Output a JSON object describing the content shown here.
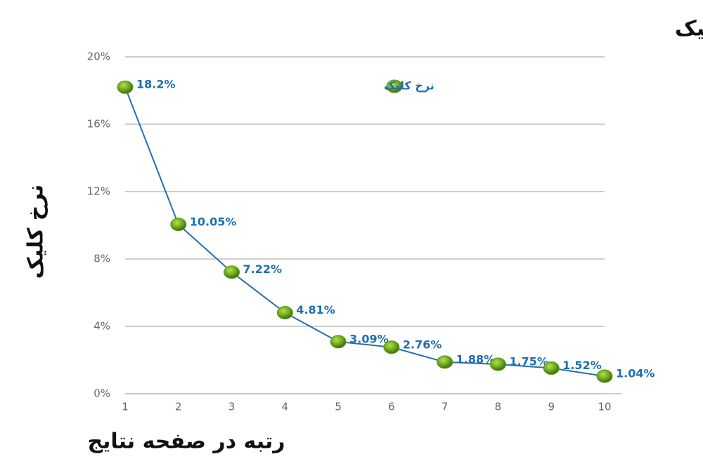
{
  "chart_data": {
    "type": "line",
    "title": "نمودار نرخ کلیک",
    "x_label": "رتبه در صفحه نتایج",
    "y_label": "نرخ کلیک",
    "x": [
      1,
      2,
      3,
      4,
      5,
      6,
      7,
      8,
      9,
      10
    ],
    "xlim": [
      1,
      10
    ],
    "xticks": [
      1,
      2,
      3,
      4,
      5,
      6,
      7,
      8,
      9,
      10
    ],
    "ylim": [
      0,
      20
    ],
    "yticks": [
      {
        "value": 0,
        "label": "0%"
      },
      {
        "value": 4,
        "label": "4%"
      },
      {
        "value": 8,
        "label": "8%"
      },
      {
        "value": 12,
        "label": "12%"
      },
      {
        "value": 16,
        "label": "16%"
      },
      {
        "value": 20,
        "label": "20%"
      }
    ],
    "grid": true,
    "series": [
      {
        "name": "نرخ کلیک",
        "color": "#2a6db0",
        "marker_color": "#5e9a1a",
        "values": [
          18.2,
          10.05,
          7.22,
          4.81,
          3.09,
          2.76,
          1.88,
          1.75,
          1.52,
          1.04
        ],
        "value_labels": [
          "18.2%",
          "10.05%",
          "7.22%",
          "4.81%",
          "3.09%",
          "2.76%",
          "1.88%",
          "1.75%",
          "1.52%",
          "1.04%"
        ]
      }
    ]
  }
}
